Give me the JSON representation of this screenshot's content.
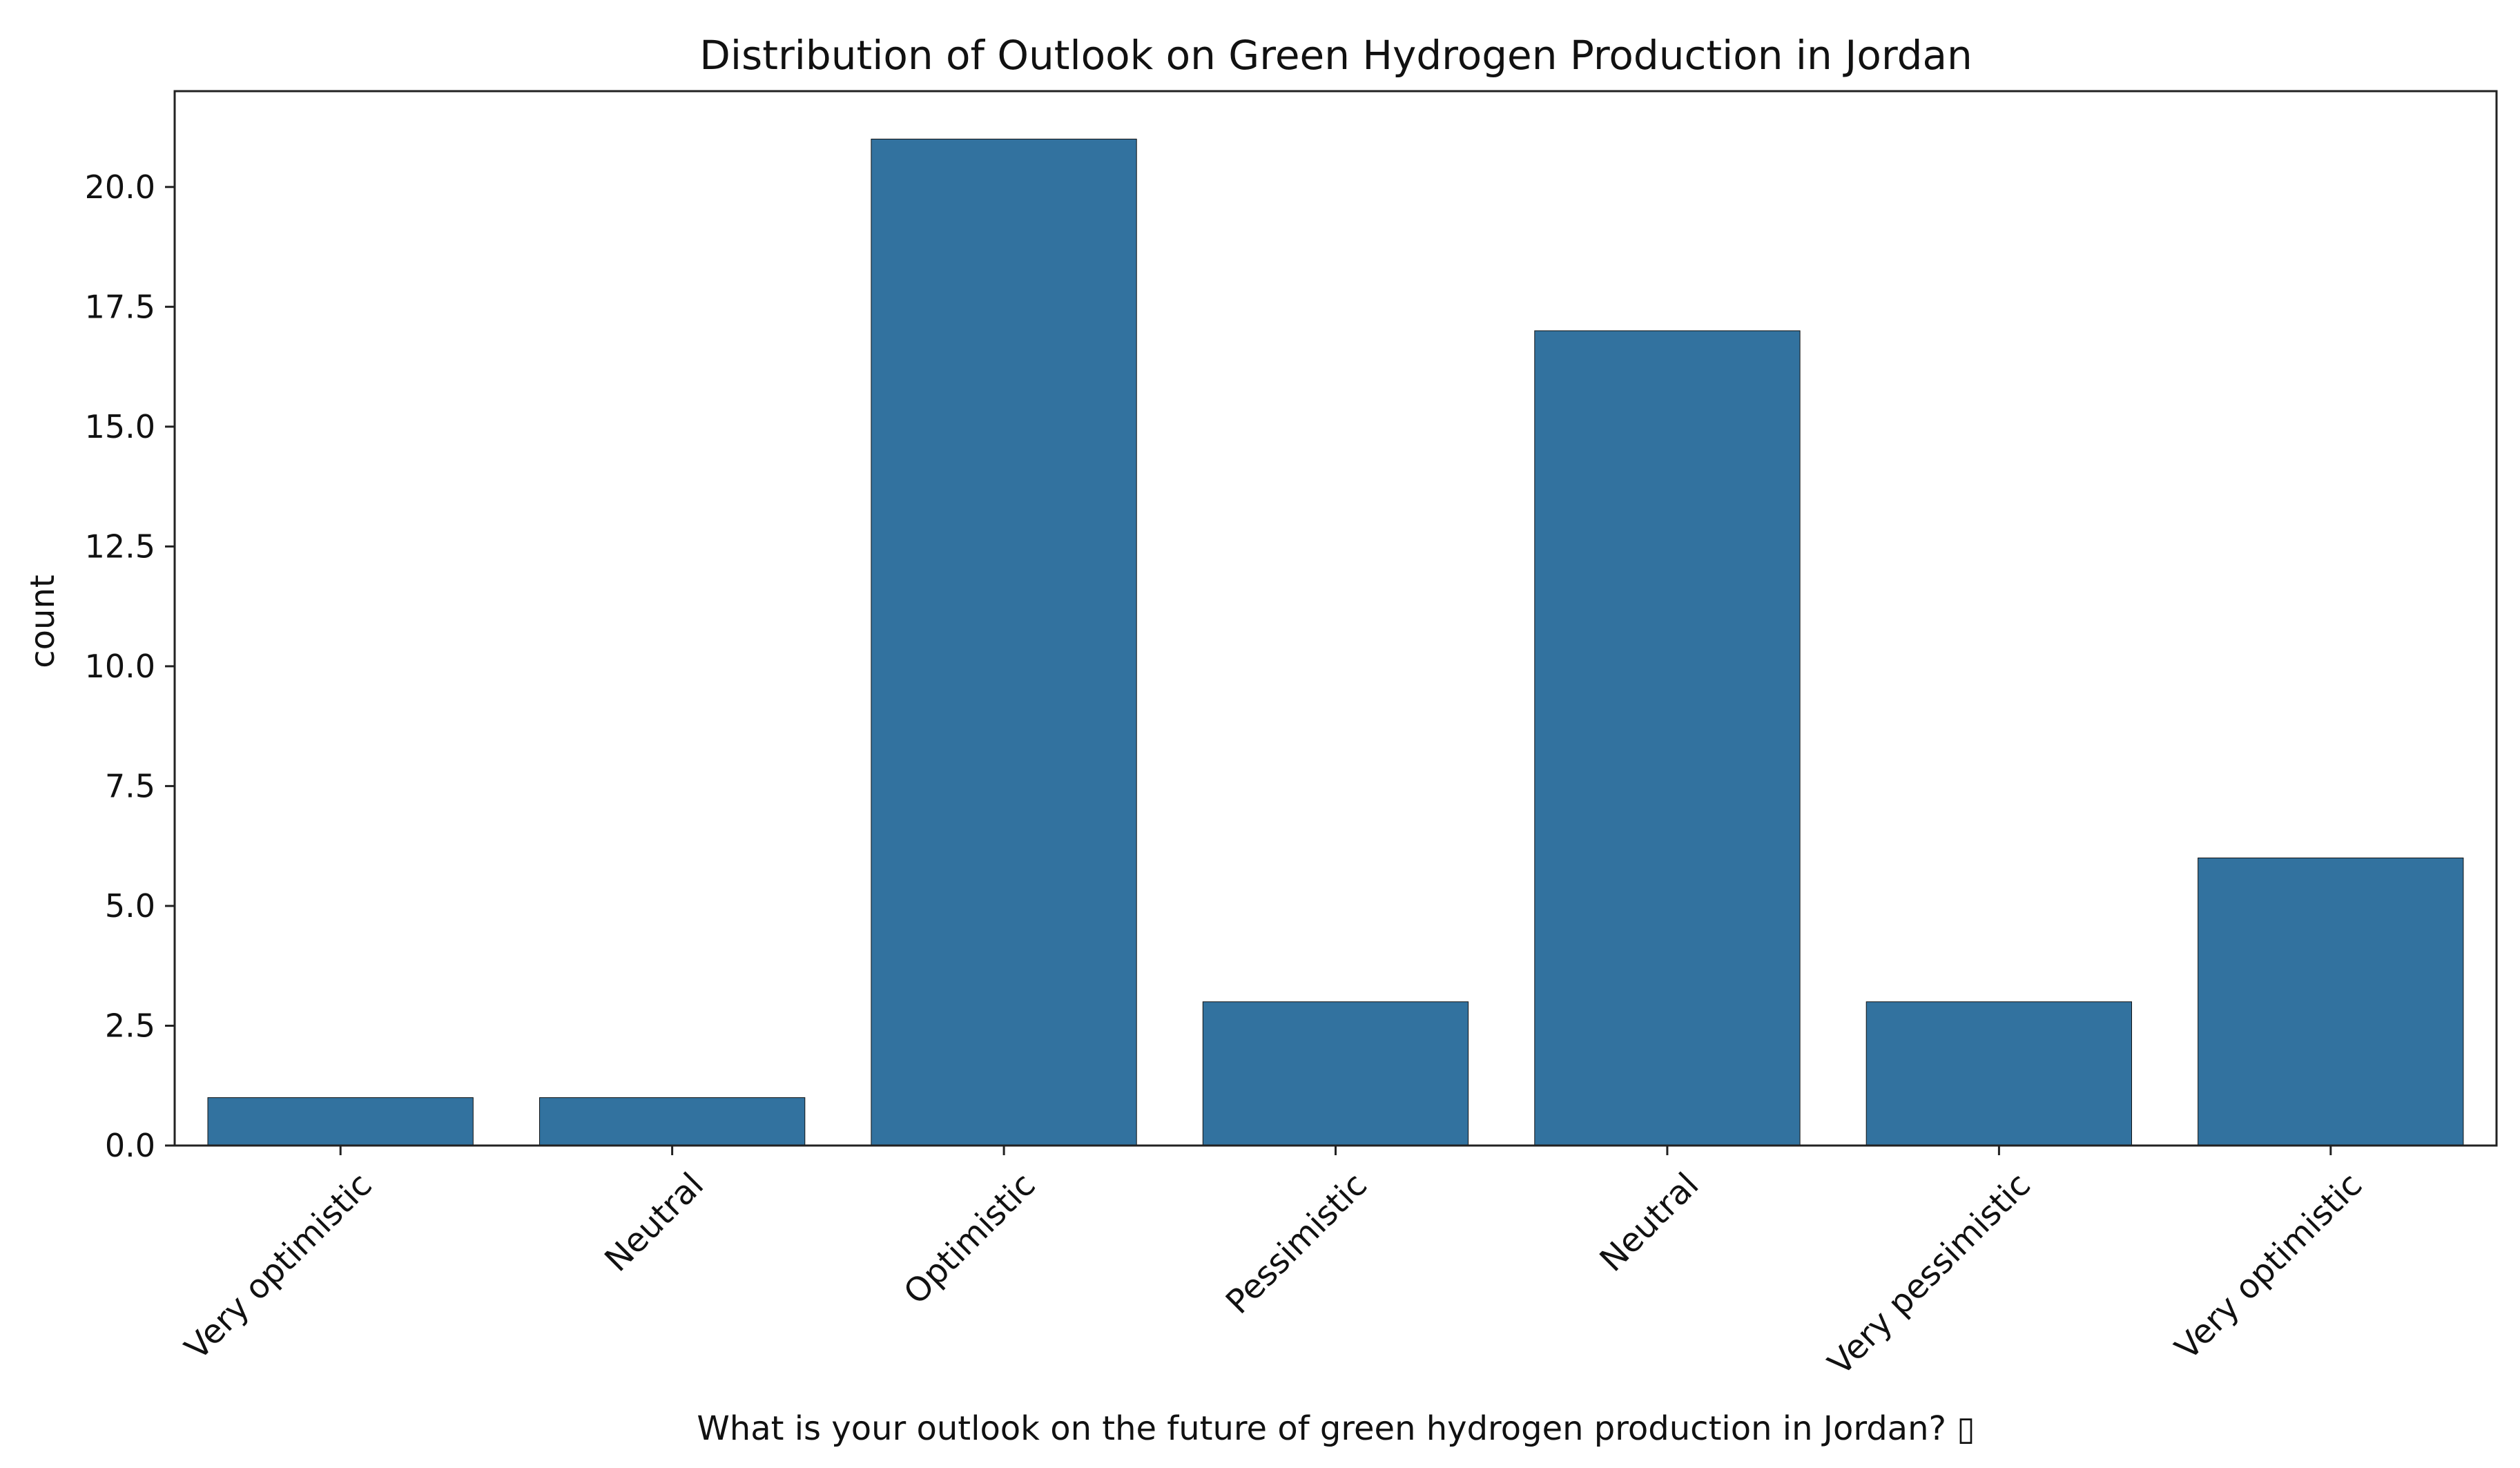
{
  "chart_data": {
    "type": "bar",
    "title": "Distribution of Outlook on Green Hydrogen Production in Jordan",
    "xlabel": "What is your outlook on the future of green hydrogen production in Jordan? ▯",
    "ylabel": "count",
    "categories": [
      "Very optimistic",
      "Neutral",
      "Optimistic",
      "Pessimistic",
      "Neutral",
      "Very pessimistic",
      "Very optimistic"
    ],
    "values": [
      1,
      1,
      21,
      3,
      17,
      3,
      6
    ],
    "ylim": [
      0,
      22
    ],
    "yticks": [
      "0.0",
      "2.5",
      "5.0",
      "7.5",
      "10.0",
      "12.5",
      "15.0",
      "17.5",
      "20.0"
    ],
    "grid": false,
    "legend": "none",
    "bar_color": "#32729f"
  }
}
